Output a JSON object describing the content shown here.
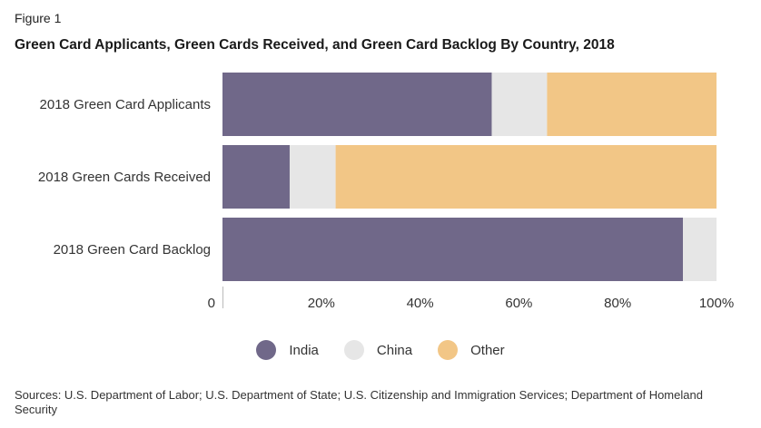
{
  "figure_label": "Figure 1",
  "title": "Green Card Applicants, Green Cards Received, and Green Card Backlog By Country, 2018",
  "source": "Sources: U.S. Department of Labor; U.S. Department of State; U.S. Citizenship and Immigration Services; Department of Homeland Security",
  "chart_data": {
    "type": "bar",
    "orientation": "horizontal",
    "stacked": true,
    "categories": [
      "2018 Green Card Applicants",
      "2018 Green Cards Received",
      "2018 Green Card Backlog"
    ],
    "series": [
      {
        "name": "India",
        "color": "#706889",
        "values": [
          0.545,
          0.136,
          0.932
        ]
      },
      {
        "name": "China",
        "color": "#e6e6e6",
        "values": [
          0.112,
          0.093,
          0.068
        ]
      },
      {
        "name": "Other",
        "color": "#f2c686",
        "values": [
          0.343,
          0.771,
          0.0
        ]
      }
    ],
    "xlim": [
      0,
      1
    ],
    "x_ticks": [
      {
        "value": 0,
        "label": "0"
      },
      {
        "value": 0.2,
        "label": "20%"
      },
      {
        "value": 0.4,
        "label": "40%"
      },
      {
        "value": 0.6,
        "label": "60%"
      },
      {
        "value": 0.8,
        "label": "80%"
      },
      {
        "value": 1.0,
        "label": "100%"
      }
    ],
    "legend_position": "bottom-center",
    "grid": false
  }
}
